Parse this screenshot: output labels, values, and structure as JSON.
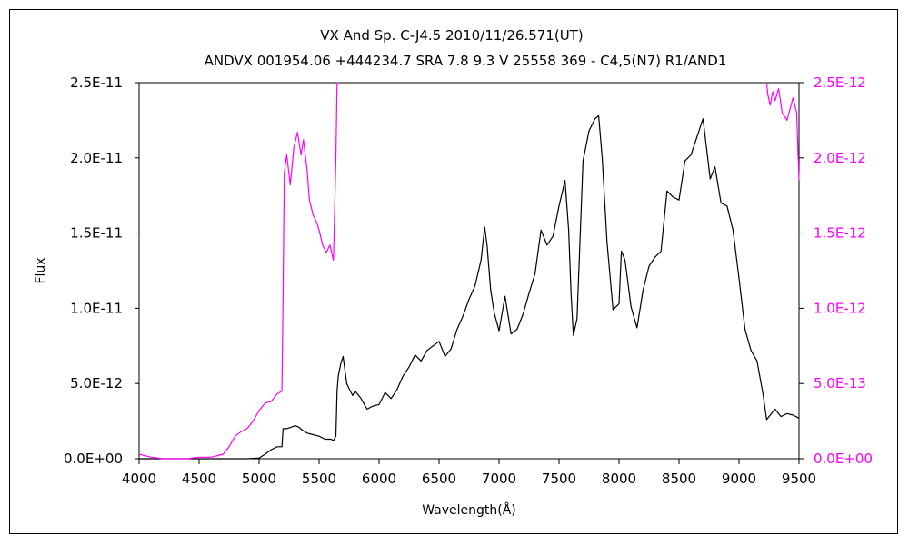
{
  "chart_data": {
    "type": "line",
    "title": "VX And    Sp. C-J4.5    2010/11/26.571(UT)",
    "subtitle": "ANDVX 001954.06 +444234.7 SRA 7.8 9.3 V 25558 369 - C4,5(N7) R1/AND1",
    "xlabel": "Wavelength(Å)",
    "ylabel": "Flux",
    "xlim": [
      4000,
      9500
    ],
    "ylim_left": [
      0,
      2.5e-11
    ],
    "ylim_right": [
      0,
      2.5e-12
    ],
    "x_ticks": [
      "4000",
      "4500",
      "5000",
      "5500",
      "6000",
      "6500",
      "7000",
      "7500",
      "8000",
      "8500",
      "9000",
      "9500"
    ],
    "y_ticks_left": [
      "0.0E+00",
      "5.0E-12",
      "1.0E-11",
      "1.5E-11",
      "2.0E-11",
      "2.5E-11"
    ],
    "y_ticks_right": [
      "0.0E+00",
      "5.0E-13",
      "1.0E-12",
      "1.5E-12",
      "2.0E-12",
      "2.5E-12"
    ],
    "colors": {
      "left_series": "#000000",
      "right_series": "#ff00ff",
      "axes": "#000000"
    },
    "series": [
      {
        "axis": "left",
        "x": [
          4000,
          4800,
          4900,
          5000,
          5050,
          5100,
          5150,
          5190,
          5200,
          5230,
          5270,
          5300,
          5330,
          5360,
          5400,
          5450,
          5500,
          5550,
          5600,
          5620,
          5640,
          5650,
          5660,
          5680,
          5700,
          5730,
          5760,
          5780,
          5800,
          5850,
          5900,
          5950,
          6000,
          6050,
          6100,
          6150,
          6200,
          6250,
          6300,
          6350,
          6400,
          6450,
          6500,
          6550,
          6600,
          6650,
          6700,
          6750,
          6800,
          6850,
          6880,
          6900,
          6930,
          6960,
          7000,
          7050,
          7100,
          7150,
          7200,
          7250,
          7300,
          7350,
          7400,
          7450,
          7500,
          7550,
          7580,
          7600,
          7620,
          7650,
          7700,
          7750,
          7800,
          7830,
          7860,
          7900,
          7950,
          8000,
          8020,
          8050,
          8100,
          8150,
          8200,
          8250,
          8300,
          8350,
          8400,
          8450,
          8500,
          8550,
          8600,
          8650,
          8700,
          8730,
          8760,
          8800,
          8850,
          8900,
          8950,
          9000,
          9050,
          9100,
          9150,
          9200,
          9230,
          9250,
          9300,
          9350,
          9400,
          9450,
          9500
        ],
        "y": [
          0,
          0,
          0,
          5e-14,
          3e-13,
          6e-13,
          8e-13,
          8e-13,
          2e-12,
          2e-12,
          2.1e-12,
          2.2e-12,
          2.1e-12,
          1.9e-12,
          1.7e-12,
          1.6e-12,
          1.5e-12,
          1.3e-12,
          1.3e-12,
          1.2e-12,
          1.5e-12,
          4.5e-12,
          5.5e-12,
          6.3e-12,
          6.8e-12,
          5e-12,
          4.5e-12,
          4.2e-12,
          4.5e-12,
          4e-12,
          3.3e-12,
          3.5e-12,
          3.6e-12,
          4.4e-12,
          4e-12,
          4.6e-12,
          5.5e-12,
          6.1e-12,
          6.9e-12,
          6.5e-12,
          7.2e-12,
          7.5e-12,
          7.8e-12,
          6.8e-12,
          7.3e-12,
          8.6e-12,
          9.5e-12,
          1.06e-11,
          1.15e-11,
          1.32e-11,
          1.54e-11,
          1.42e-11,
          1.12e-11,
          9.7e-12,
          8.5e-12,
          1.08e-11,
          8.3e-12,
          8.6e-12,
          9.6e-12,
          1.1e-11,
          1.23e-11,
          1.52e-11,
          1.42e-11,
          1.48e-11,
          1.68e-11,
          1.85e-11,
          1.52e-11,
          1.1e-11,
          8.2e-12,
          9.3e-12,
          1.98e-11,
          2.18e-11,
          2.26e-11,
          2.28e-11,
          2e-11,
          1.44e-11,
          9.9e-12,
          1.03e-11,
          1.38e-11,
          1.32e-11,
          1.01e-11,
          8.7e-12,
          1.12e-11,
          1.28e-11,
          1.34e-11,
          1.38e-11,
          1.78e-11,
          1.74e-11,
          1.72e-11,
          1.98e-11,
          2.02e-11,
          2.14e-11,
          2.26e-11,
          2.06e-11,
          1.86e-11,
          1.94e-11,
          1.7e-11,
          1.68e-11,
          1.52e-11,
          1.2e-11,
          8.6e-12,
          7.2e-12,
          6.5e-12,
          4.3e-12,
          2.6e-12,
          2.8e-12,
          3.3e-12,
          2.8e-12,
          3e-12,
          2.9e-12,
          2.7e-12
        ]
      },
      {
        "axis": "right",
        "x": [
          4000,
          4050,
          4100,
          4200,
          4300,
          4400,
          4500,
          4600,
          4700,
          4750,
          4800,
          4850,
          4900,
          4950,
          5000,
          5050,
          5100,
          5150,
          5190,
          5200,
          5210,
          5230,
          5260,
          5290,
          5320,
          5350,
          5370,
          5400,
          5420,
          5450,
          5480,
          5500,
          5530,
          5560,
          5590,
          5620,
          5640,
          5650,
          5660,
          9230,
          9240,
          9260,
          9280,
          9300,
          9330,
          9360,
          9400,
          9450,
          9480,
          9500
        ],
        "y": [
          3e-14,
          2e-14,
          1e-14,
          0,
          0,
          0,
          1e-14,
          1e-14,
          3e-14,
          8e-14,
          1.5e-13,
          1.8e-13,
          2e-13,
          2.5e-13,
          3.2e-13,
          3.7e-13,
          3.8e-13,
          4.3e-13,
          4.5e-13,
          1.1e-12,
          1.9e-12,
          2.02e-12,
          1.82e-12,
          2.07e-12,
          2.17e-12,
          2.02e-12,
          2.12e-12,
          1.92e-12,
          1.72e-12,
          1.62e-12,
          1.57e-12,
          1.52e-12,
          1.42e-12,
          1.37e-12,
          1.42e-12,
          1.32e-12,
          2e-12,
          2.5e-12,
          2.5e-12,
          2.5e-12,
          2.42e-12,
          2.35e-12,
          2.44e-12,
          2.38e-12,
          2.46e-12,
          2.3e-12,
          2.25e-12,
          2.4e-12,
          2.3e-12,
          1.85e-12
        ]
      }
    ]
  }
}
